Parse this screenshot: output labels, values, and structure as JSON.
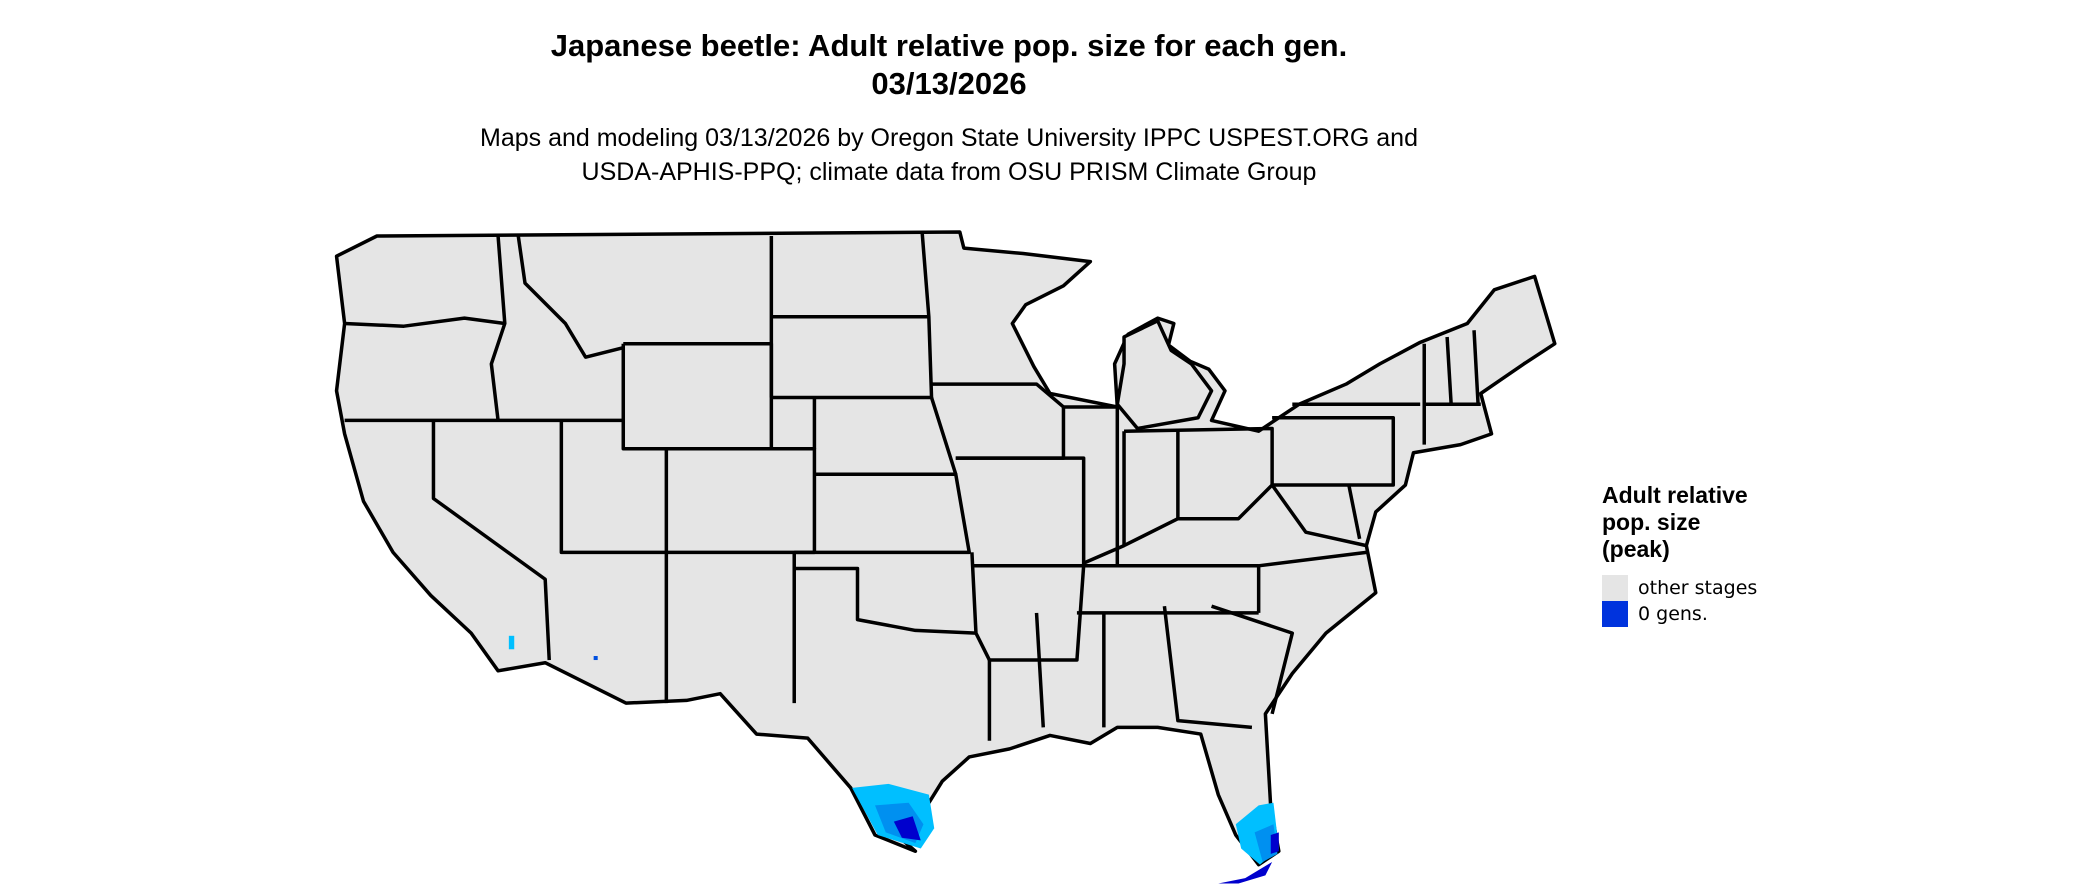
{
  "header": {
    "title": "Japanese beetle: Adult relative pop. size for each gen.",
    "date": "03/13/2026",
    "subtitle_line1": "Maps and modeling 03/13/2026 by Oregon State University IPPC USPEST.ORG and",
    "subtitle_line2": "USDA-APHIS-PPQ; climate data from OSU PRISM Climate Group"
  },
  "map": {
    "land_color": "#E5E5E5",
    "border_color": "#000000",
    "shading_colors": [
      "#00BFFF",
      "#0090F0",
      "#0050E0",
      "#0000CD"
    ]
  },
  "legend": {
    "title_line1": "Adult relative",
    "title_line2": "pop. size",
    "title_line3": "(peak)",
    "items": [
      {
        "label": "other stages",
        "color": "#E5E5E5"
      },
      {
        "label": "0 gens.",
        "color": "#0033DD"
      }
    ]
  }
}
